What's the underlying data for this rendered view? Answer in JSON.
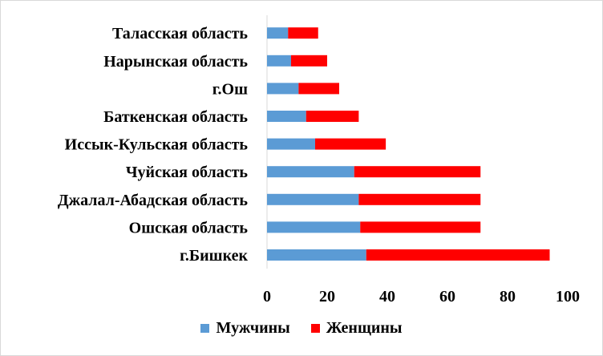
{
  "chart_data": {
    "type": "bar",
    "orientation": "horizontal",
    "stacked": true,
    "categories": [
      "г.Бишкек",
      "Ошская область",
      "Джалал-Абадская область",
      "Чуйская область",
      "Иссык-Кульская область",
      "Баткенская область",
      "г.Ош",
      "Нарынская область",
      "Таласская область"
    ],
    "series": [
      {
        "name": "Мужчины",
        "color": "#5b9bd5",
        "values": [
          33,
          31,
          30.5,
          29,
          16,
          13,
          10.5,
          8,
          7
        ]
      },
      {
        "name": "Женщины",
        "color": "#ff0000",
        "values": [
          61,
          40,
          40.5,
          42,
          23.5,
          17.5,
          13.5,
          12,
          10
        ]
      }
    ],
    "xlim": [
      0,
      100
    ],
    "xticks": [
      "0",
      "20",
      "40",
      "60",
      "80",
      "100"
    ],
    "grid": false,
    "legend_position": "bottom",
    "title": "",
    "xlabel": "",
    "ylabel": ""
  },
  "legend": {
    "items": [
      {
        "label": "Мужчины",
        "color": "#5b9bd5"
      },
      {
        "label": "Женщины",
        "color": "#ff0000"
      }
    ]
  }
}
